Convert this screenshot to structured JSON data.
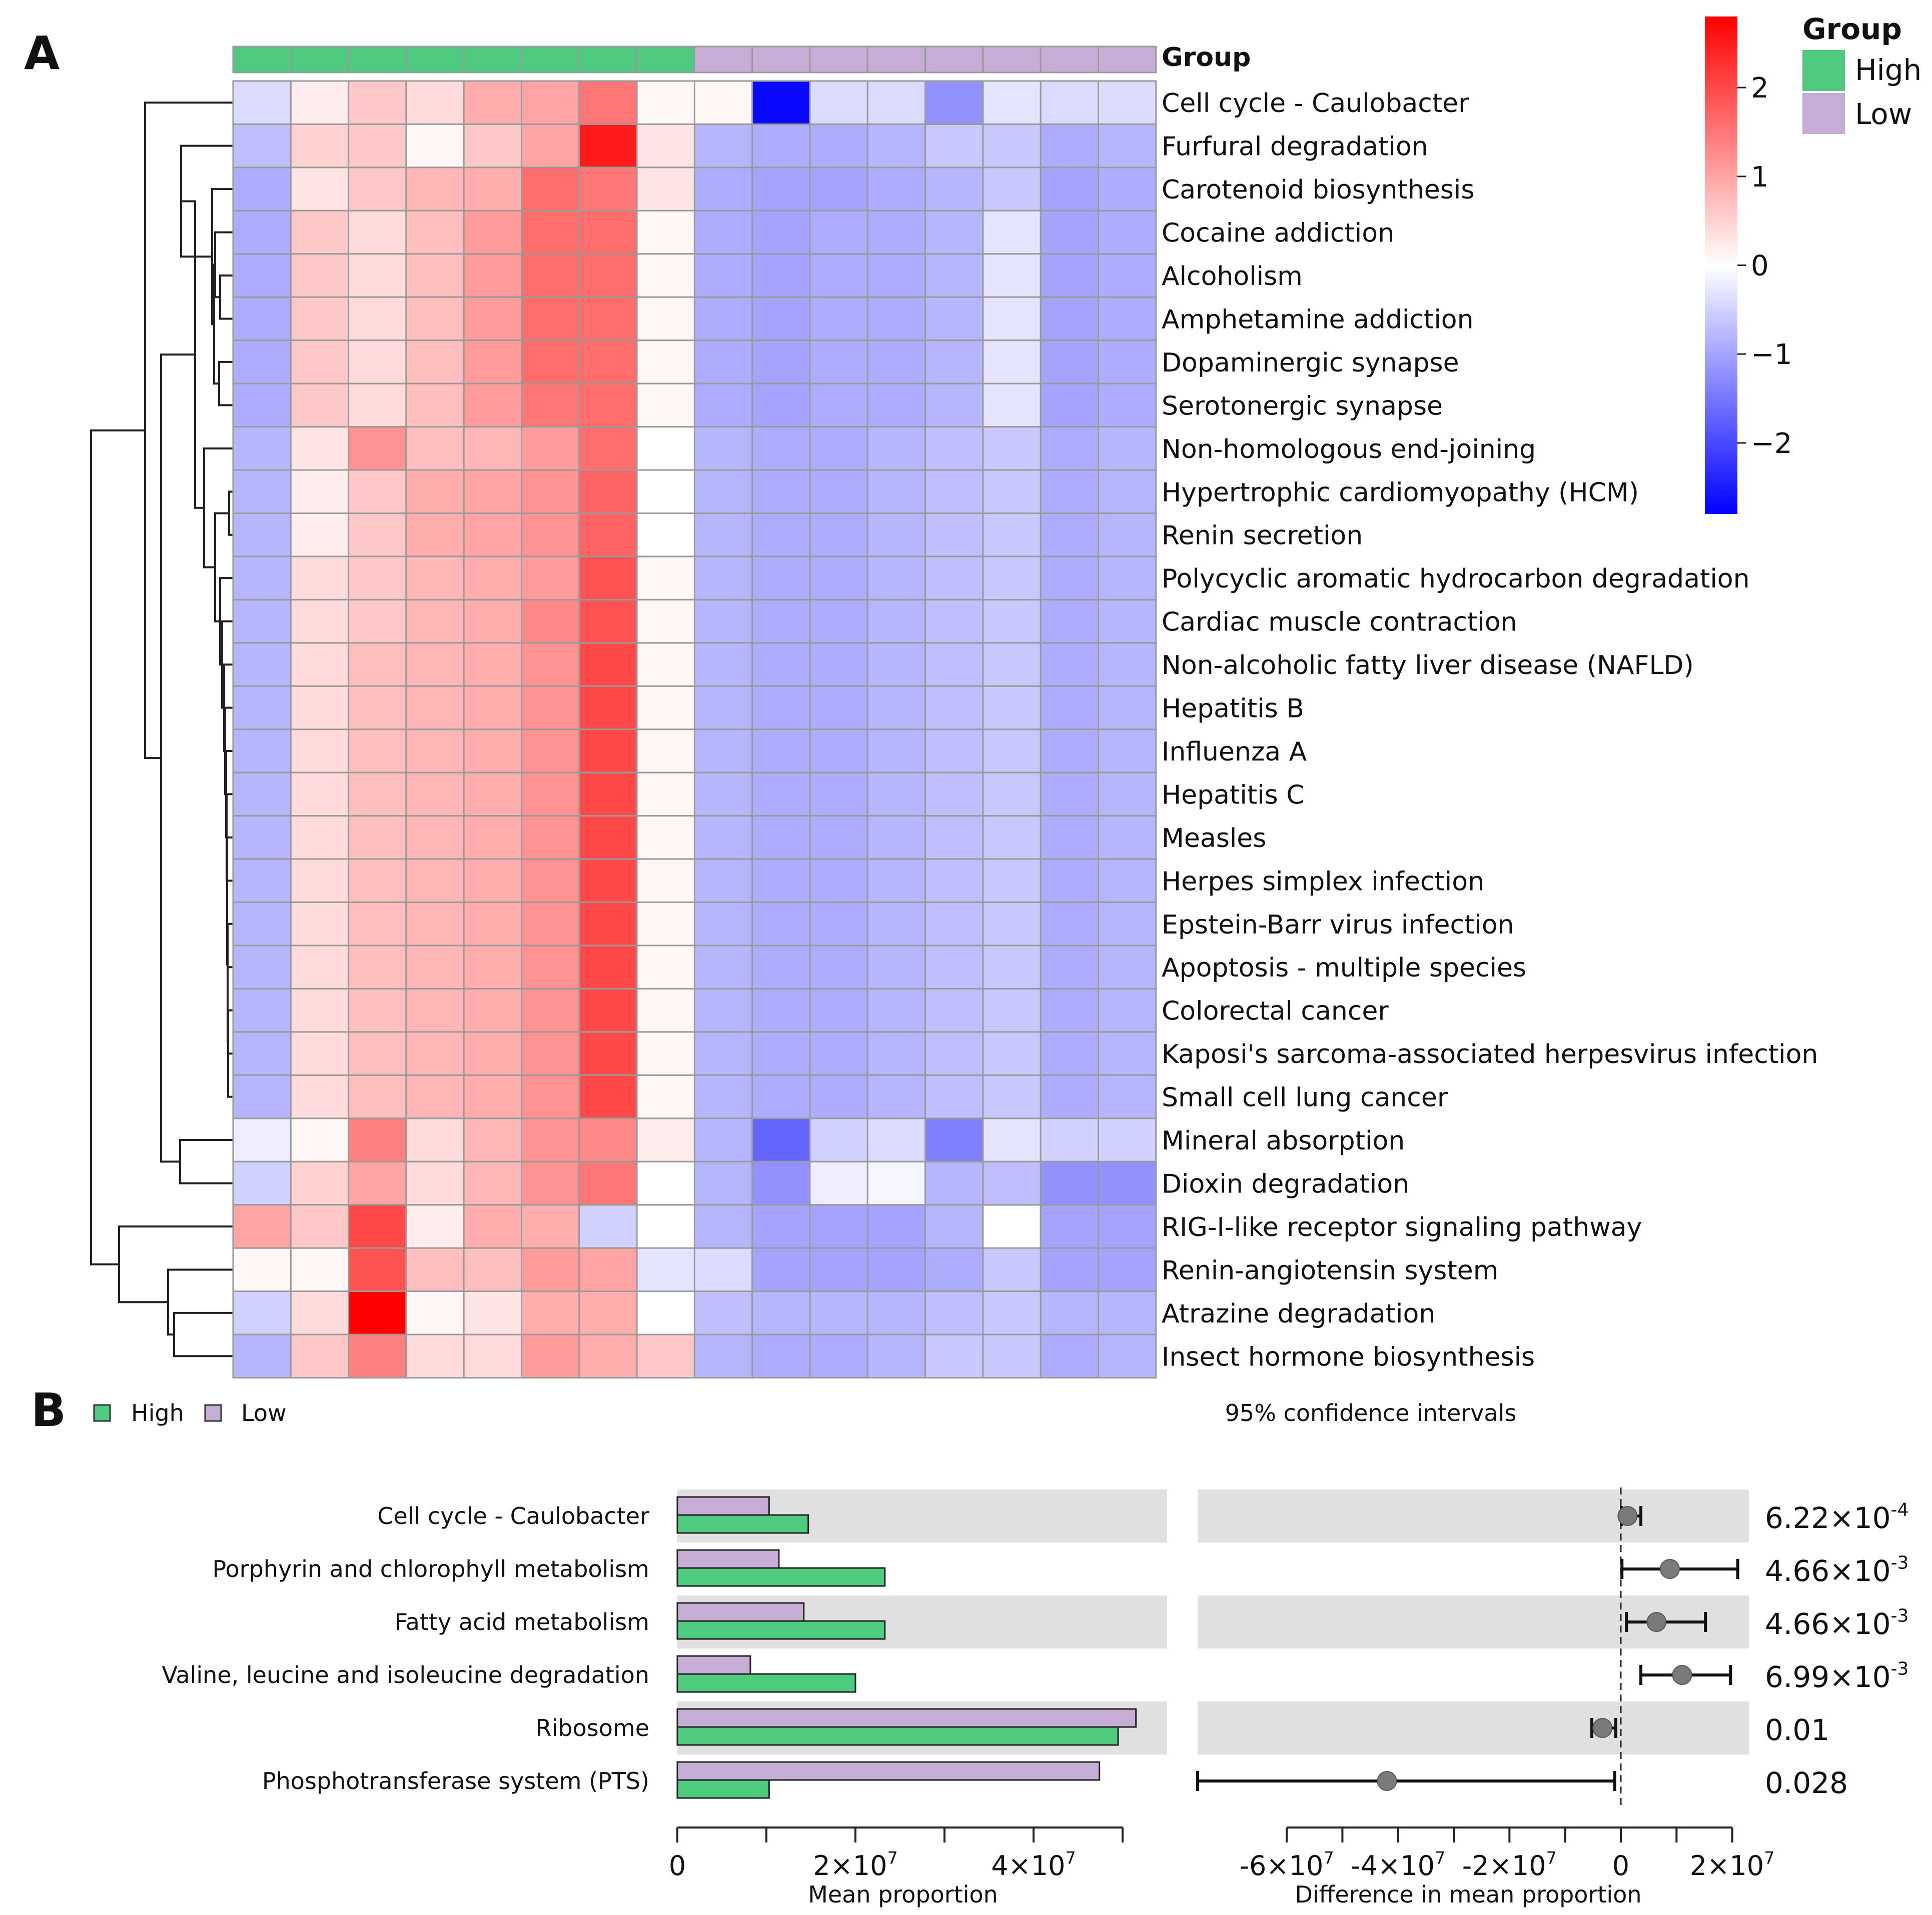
{
  "panel_a": {
    "letter": "A",
    "group_bar_label": "Group",
    "legend": {
      "title": "Group",
      "high": "High",
      "low": "Low",
      "high_color": "#4ECB7E",
      "low_color": "#C6ADD6"
    },
    "colorbar": {
      "ticks": [
        "2",
        "1",
        "0",
        "−1",
        "−2"
      ],
      "tick_values": [
        2,
        1,
        0,
        -1,
        -2
      ],
      "range": [
        -2.8,
        2.8
      ],
      "high_color": "#FF0000",
      "mid_color": "#FFFFFF",
      "low_color": "#0000FF"
    }
  },
  "panel_b": {
    "letter": "B",
    "legend": {
      "high": "High",
      "low": "Low",
      "high_color": "#4ECB7E",
      "low_color": "#C6ADD6"
    },
    "ci_label": "95% confidence intervals"
  },
  "chart_data": [
    {
      "type": "heatmap",
      "title": "",
      "columns_group": [
        "High",
        "High",
        "High",
        "High",
        "High",
        "High",
        "High",
        "High",
        "Low",
        "Low",
        "Low",
        "Low",
        "Low",
        "Low",
        "Low",
        "Low"
      ],
      "rows": [
        "Cell cycle - Caulobacter",
        "Furfural degradation",
        "Carotenoid biosynthesis",
        "Cocaine addiction",
        "Alcoholism",
        "Amphetamine addiction",
        "Dopaminergic synapse",
        "Serotonergic synapse",
        "Non-homologous end-joining",
        "Hypertrophic cardiomyopathy (HCM)",
        "Renin secretion",
        "Polycyclic aromatic hydrocarbon degradation",
        "Cardiac muscle contraction",
        "Non-alcoholic fatty liver disease (NAFLD)",
        "Hepatitis B",
        "Influenza A",
        "Hepatitis C",
        "Measles",
        "Herpes simplex infection",
        "Epstein-Barr virus infection",
        "Apoptosis - multiple species",
        "Colorectal cancer",
        "Kaposi's sarcoma-associated herpesvirus infection",
        "Small cell lung cancer",
        "Mineral absorption",
        "Dioxin degradation",
        "RIG-I-like receptor signaling pathway",
        "Renin-angiotensin system",
        "Atrazine degradation",
        "Insect hormone biosynthesis"
      ],
      "values": [
        [
          -0.4,
          0.2,
          0.6,
          0.4,
          0.9,
          1.0,
          1.5,
          0.1,
          0.1,
          -2.7,
          -0.4,
          -0.4,
          -1.2,
          -0.3,
          -0.4,
          -0.4
        ],
        [
          -0.7,
          0.5,
          0.6,
          0.1,
          0.6,
          1.0,
          2.5,
          0.3,
          -0.8,
          -0.9,
          -0.9,
          -0.8,
          -0.6,
          -0.6,
          -0.9,
          -0.8
        ],
        [
          -0.9,
          0.3,
          0.6,
          0.8,
          0.9,
          1.6,
          1.5,
          0.3,
          -0.9,
          -1.0,
          -1.0,
          -0.9,
          -0.8,
          -0.6,
          -1.0,
          -0.9
        ],
        [
          -0.9,
          0.6,
          0.4,
          0.7,
          1.1,
          1.6,
          1.6,
          0.1,
          -0.9,
          -1.0,
          -0.9,
          -0.9,
          -0.8,
          -0.3,
          -1.0,
          -0.9
        ],
        [
          -0.9,
          0.6,
          0.4,
          0.7,
          1.1,
          1.6,
          1.6,
          0.1,
          -0.9,
          -1.0,
          -0.9,
          -0.9,
          -0.8,
          -0.3,
          -1.0,
          -0.9
        ],
        [
          -0.9,
          0.6,
          0.4,
          0.7,
          1.1,
          1.6,
          1.6,
          0.1,
          -0.9,
          -1.0,
          -0.9,
          -0.9,
          -0.8,
          -0.3,
          -1.0,
          -0.9
        ],
        [
          -0.9,
          0.6,
          0.4,
          0.7,
          1.1,
          1.6,
          1.6,
          0.1,
          -0.9,
          -1.0,
          -0.9,
          -0.9,
          -0.8,
          -0.3,
          -1.0,
          -0.9
        ],
        [
          -0.9,
          0.6,
          0.4,
          0.7,
          1.1,
          1.5,
          1.6,
          0.1,
          -0.9,
          -1.0,
          -0.9,
          -0.9,
          -0.8,
          -0.3,
          -1.0,
          -0.9
        ],
        [
          -0.8,
          0.3,
          1.2,
          0.7,
          0.8,
          1.1,
          1.6,
          0.0,
          -0.8,
          -0.9,
          -0.9,
          -0.8,
          -0.7,
          -0.6,
          -0.9,
          -0.8
        ],
        [
          -0.8,
          0.2,
          0.6,
          0.9,
          1.0,
          1.2,
          1.7,
          0.0,
          -0.8,
          -0.9,
          -0.9,
          -0.8,
          -0.7,
          -0.6,
          -0.9,
          -0.8
        ],
        [
          -0.8,
          0.2,
          0.6,
          0.9,
          1.0,
          1.2,
          1.7,
          0.0,
          -0.8,
          -0.9,
          -0.9,
          -0.8,
          -0.7,
          -0.6,
          -0.9,
          -0.8
        ],
        [
          -0.8,
          0.4,
          0.6,
          0.8,
          0.9,
          1.1,
          1.9,
          0.1,
          -0.8,
          -0.9,
          -0.9,
          -0.8,
          -0.7,
          -0.6,
          -0.9,
          -0.8
        ],
        [
          -0.8,
          0.4,
          0.6,
          0.8,
          0.9,
          1.3,
          1.9,
          0.1,
          -0.8,
          -0.9,
          -0.9,
          -0.8,
          -0.7,
          -0.6,
          -0.9,
          -0.8
        ],
        [
          -0.8,
          0.4,
          0.7,
          0.8,
          0.9,
          1.2,
          2.0,
          0.1,
          -0.8,
          -0.9,
          -0.9,
          -0.8,
          -0.7,
          -0.6,
          -0.9,
          -0.8
        ],
        [
          -0.8,
          0.4,
          0.7,
          0.8,
          0.9,
          1.2,
          2.0,
          0.1,
          -0.8,
          -0.9,
          -0.9,
          -0.8,
          -0.7,
          -0.6,
          -0.9,
          -0.8
        ],
        [
          -0.8,
          0.4,
          0.7,
          0.8,
          0.9,
          1.2,
          2.0,
          0.1,
          -0.8,
          -0.9,
          -0.9,
          -0.8,
          -0.7,
          -0.6,
          -0.9,
          -0.8
        ],
        [
          -0.8,
          0.4,
          0.7,
          0.8,
          0.9,
          1.2,
          2.0,
          0.1,
          -0.8,
          -0.9,
          -0.9,
          -0.8,
          -0.7,
          -0.6,
          -0.9,
          -0.8
        ],
        [
          -0.8,
          0.4,
          0.7,
          0.8,
          0.9,
          1.2,
          2.0,
          0.1,
          -0.8,
          -0.9,
          -0.9,
          -0.8,
          -0.7,
          -0.6,
          -0.9,
          -0.8
        ],
        [
          -0.8,
          0.4,
          0.7,
          0.8,
          0.9,
          1.2,
          2.0,
          0.1,
          -0.8,
          -0.9,
          -0.9,
          -0.8,
          -0.7,
          -0.6,
          -0.9,
          -0.8
        ],
        [
          -0.8,
          0.4,
          0.7,
          0.8,
          0.9,
          1.2,
          2.0,
          0.1,
          -0.8,
          -0.9,
          -0.9,
          -0.8,
          -0.7,
          -0.6,
          -0.9,
          -0.8
        ],
        [
          -0.8,
          0.4,
          0.7,
          0.8,
          0.9,
          1.2,
          2.0,
          0.1,
          -0.8,
          -0.9,
          -0.9,
          -0.8,
          -0.7,
          -0.6,
          -0.9,
          -0.8
        ],
        [
          -0.8,
          0.4,
          0.7,
          0.8,
          0.9,
          1.2,
          2.0,
          0.1,
          -0.8,
          -0.9,
          -0.9,
          -0.8,
          -0.7,
          -0.6,
          -0.9,
          -0.8
        ],
        [
          -0.8,
          0.4,
          0.7,
          0.8,
          0.9,
          1.2,
          2.0,
          0.1,
          -0.8,
          -0.9,
          -0.9,
          -0.8,
          -0.7,
          -0.6,
          -0.9,
          -0.8
        ],
        [
          -0.8,
          0.4,
          0.7,
          0.8,
          0.9,
          1.2,
          2.0,
          0.1,
          -0.8,
          -0.9,
          -0.9,
          -0.8,
          -0.7,
          -0.6,
          -0.9,
          -0.8
        ],
        [
          -0.2,
          0.1,
          1.4,
          0.4,
          0.8,
          1.2,
          1.3,
          0.2,
          -0.8,
          -1.7,
          -0.5,
          -0.4,
          -1.4,
          -0.3,
          -0.5,
          -0.5
        ],
        [
          -0.5,
          0.5,
          1.0,
          0.4,
          0.8,
          1.2,
          1.5,
          0.0,
          -0.8,
          -1.2,
          -0.2,
          -0.1,
          -0.8,
          -0.7,
          -1.2,
          -1.2
        ],
        [
          1.0,
          0.6,
          2.0,
          0.2,
          0.9,
          0.9,
          -0.5,
          0.0,
          -0.8,
          -1.0,
          -1.0,
          -1.0,
          -0.8,
          0.0,
          -1.0,
          -1.0
        ],
        [
          0.1,
          0.1,
          1.9,
          0.7,
          0.7,
          1.1,
          1.0,
          -0.3,
          -0.4,
          -1.0,
          -1.0,
          -1.0,
          -0.9,
          -0.6,
          -1.0,
          -1.0
        ],
        [
          -0.5,
          0.4,
          2.8,
          0.1,
          0.3,
          0.9,
          0.9,
          0.0,
          -0.7,
          -0.8,
          -0.8,
          -0.8,
          -0.7,
          -0.6,
          -0.8,
          -0.8
        ],
        [
          -0.8,
          0.6,
          1.4,
          0.4,
          0.4,
          1.1,
          0.9,
          0.6,
          -0.8,
          -0.9,
          -0.9,
          -0.8,
          -0.6,
          -0.6,
          -0.9,
          -0.8
        ]
      ],
      "color_range": [
        -2.8,
        2.8
      ],
      "legend": [
        "High",
        "Low"
      ]
    },
    {
      "type": "bar",
      "orientation": "horizontal",
      "categories": [
        "Cell cycle - Caulobacter",
        "Porphyrin and chlorophyll metabolism",
        "Fatty acid metabolism",
        "Valine, leucine and isoleucine degradation",
        "Ribosome",
        "Phosphotransferase system (PTS)"
      ],
      "series": [
        {
          "name": "Low",
          "color": "#C6ADD6",
          "values": [
            10300000,
            11400000,
            14200000,
            8200000,
            51500000,
            47400000
          ]
        },
        {
          "name": "High",
          "color": "#4ECB7E",
          "values": [
            14700000,
            23300000,
            23300000,
            20000000,
            49500000,
            10300000
          ]
        }
      ],
      "xlabel": "Mean proportion",
      "ylabel": "",
      "xlim": [
        0,
        55000000
      ],
      "ticks": [
        {
          "value": 0,
          "label": "0"
        },
        {
          "value": 20000000,
          "label": "2×10",
          "exp": "7"
        },
        {
          "value": 40000000,
          "label": "4×10",
          "exp": "7"
        }
      ],
      "minor_ticks": [
        10000000,
        30000000,
        50000000
      ],
      "shaded_rows": [
        0,
        2,
        4
      ]
    },
    {
      "type": "scatter",
      "title": "95% confidence intervals",
      "categories": [
        "Cell cycle - Caulobacter",
        "Porphyrin and chlorophyll metabolism",
        "Fatty acid metabolism",
        "Valine, leucine and isoleucine degradation",
        "Ribosome",
        "Phosphotransferase system (PTS)"
      ],
      "diff": [
        1200000,
        8800000,
        6400000,
        11000000,
        -3300000,
        -42000000
      ],
      "ci_low": [
        100000,
        200000,
        1000000,
        3600000,
        -5200000,
        -76000000
      ],
      "ci_high": [
        3600000,
        21000000,
        15200000,
        19700000,
        -900000,
        -1100000
      ],
      "p_values": [
        {
          "text": "6.22×10",
          "exp": "-4"
        },
        {
          "text": "4.66×10",
          "exp": "-3"
        },
        {
          "text": "4.66×10",
          "exp": "-3"
        },
        {
          "text": "6.99×10",
          "exp": "-3"
        },
        {
          "text": "0.01",
          "exp": ""
        },
        {
          "text": "0.028",
          "exp": ""
        }
      ],
      "xlabel": "Difference in mean proportion",
      "xlim": [
        -76000000,
        23000000
      ],
      "ticks": [
        {
          "value": -60000000,
          "label": "-6×10",
          "exp": "7"
        },
        {
          "value": -40000000,
          "label": "-4×10",
          "exp": "7"
        },
        {
          "value": -20000000,
          "label": "-2×10",
          "exp": "7"
        },
        {
          "value": 0,
          "label": "0",
          "exp": ""
        },
        {
          "value": 20000000,
          "label": "2×10",
          "exp": "7"
        }
      ],
      "shaded_rows": [
        0,
        2,
        4
      ]
    }
  ]
}
